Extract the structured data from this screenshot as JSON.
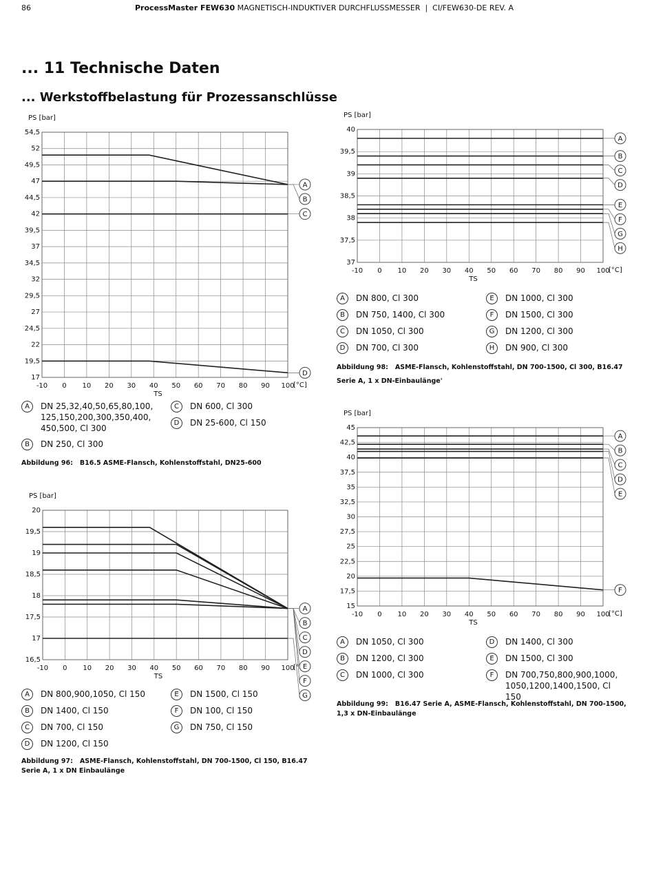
{
  "header": {
    "page": "86",
    "product": "ProcessMaster FEW630",
    "title": "MAGNETISCH-INDUKTIVER DURCHFLUSSMESSER  |  CI/FEW630-DE REV. A"
  },
  "headings": [
    "... 11 Technische Daten",
    "... Werkstoffbelastung für Prozessanschlüsse"
  ],
  "chart_data": [
    {
      "type": "line",
      "y_label": "PS [bar]",
      "x_label": "TS",
      "x_unit": "[°C]",
      "grid": true,
      "color": "#222",
      "xlim": [
        -10,
        100
      ],
      "xticks": [
        -10,
        0,
        10,
        20,
        30,
        40,
        50,
        60,
        70,
        80,
        90,
        100
      ],
      "ylim": [
        17,
        54.5
      ],
      "yticks": [
        17,
        {
          "value": 19.5,
          "label": "19,5"
        },
        22,
        {
          "value": 24.5,
          "label": "24,5"
        },
        27,
        {
          "value": 29.5,
          "label": "29,5"
        },
        32,
        {
          "value": 34.5,
          "label": "34,5"
        },
        37,
        {
          "value": 39.5,
          "label": "39,5"
        },
        42,
        {
          "value": 44.5,
          "label": "44,5"
        },
        47,
        {
          "value": 49.5,
          "label": "49,5"
        },
        52,
        {
          "value": 54.5,
          "label": "54,5"
        }
      ],
      "series": [
        {
          "name": "A",
          "label": "DN 25,32,40,50,65,80,100, 125,150,200,300,350,400, 450,500, Cl 300",
          "x": [
            -10,
            38,
            100
          ],
          "values": [
            51,
            51,
            46.5
          ]
        },
        {
          "name": "B",
          "label": "DN 250, Cl 300",
          "x": [
            -10,
            50,
            100
          ],
          "values": [
            47,
            47,
            46.5
          ]
        },
        {
          "name": "C",
          "label": "DN 600, Cl 300",
          "x": [
            -10,
            100
          ],
          "values": [
            42,
            42
          ]
        },
        {
          "name": "D",
          "label": "DN 25-600, Cl 150",
          "x": [
            -10,
            38,
            100
          ],
          "values": [
            19.5,
            19.5,
            17.7
          ]
        }
      ],
      "caption_number": "Abbildung 96:",
      "caption": "B16.5 ASME-Flansch, Kohlenstoffstahl, DN25-600"
    },
    {
      "type": "line",
      "y_label": "PS [bar]",
      "x_label": "TS",
      "x_unit": "[°C]",
      "grid": true,
      "color": "#222",
      "xlim": [
        -10,
        100
      ],
      "xticks": [
        -10,
        0,
        10,
        20,
        30,
        40,
        50,
        60,
        70,
        80,
        90,
        100
      ],
      "ylim": [
        37,
        40
      ],
      "yticks": [
        37,
        {
          "value": 37.5,
          "label": "37,5"
        },
        38,
        {
          "value": 38.5,
          "label": "38,5"
        },
        39,
        {
          "value": 39.5,
          "label": "39,5"
        },
        40
      ],
      "series": [
        {
          "name": "A",
          "label": "DN 800, Cl 300",
          "x": [
            -10,
            100
          ],
          "values": [
            39.8,
            39.8
          ]
        },
        {
          "name": "B",
          "label": "DN 750, 1400, Cl 300",
          "x": [
            -10,
            100
          ],
          "values": [
            39.4,
            39.4
          ]
        },
        {
          "name": "C",
          "label": "DN 1050, Cl 300",
          "x": [
            -10,
            100
          ],
          "values": [
            39.2,
            39.2
          ]
        },
        {
          "name": "D",
          "label": "DN 700, Cl 300",
          "x": [
            -10,
            100
          ],
          "values": [
            38.9,
            38.9
          ]
        },
        {
          "name": "E",
          "label": "DN 1000, Cl 300",
          "x": [
            -10,
            100
          ],
          "values": [
            38.3,
            38.3
          ]
        },
        {
          "name": "F",
          "label": "DN 1500, Cl 300",
          "x": [
            -10,
            100
          ],
          "values": [
            38.2,
            38.2
          ]
        },
        {
          "name": "G",
          "label": "DN 1200, Cl 300",
          "x": [
            -10,
            100
          ],
          "values": [
            38.1,
            38.1
          ]
        },
        {
          "name": "H",
          "label": "DN 900, Cl 300",
          "x": [
            -10,
            100
          ],
          "values": [
            37.9,
            37.9
          ]
        }
      ],
      "caption_number": "Abbildung 98:",
      "caption": "ASME-Flansch, Kohlenstoffstahl, DN 700-1500, Cl 300, B16.47 Serie A, 1 x DN-Einbaulänge'"
    },
    {
      "type": "line",
      "y_label": "PS [bar]",
      "x_label": "TS",
      "x_unit": "[°C]",
      "grid": true,
      "color": "#222",
      "xlim": [
        -10,
        100
      ],
      "xticks": [
        -10,
        0,
        10,
        20,
        30,
        40,
        50,
        60,
        70,
        80,
        90,
        100
      ],
      "ylim": [
        16.5,
        20
      ],
      "yticks": [
        {
          "value": 16.5,
          "label": "16,5"
        },
        17,
        {
          "value": 17.5,
          "label": "17,5"
        },
        18,
        {
          "value": 18.5,
          "label": "18,5"
        },
        19,
        {
          "value": 19.5,
          "label": "19,5"
        },
        20
      ],
      "series": [
        {
          "name": "A",
          "label": "DN 800,900,1050, Cl 150",
          "x": [
            -10,
            38,
            100
          ],
          "values": [
            19.6,
            19.6,
            17.7
          ]
        },
        {
          "name": "B",
          "label": "DN 1400, Cl 150",
          "x": [
            -10,
            50,
            100
          ],
          "values": [
            19.2,
            19.2,
            17.7
          ]
        },
        {
          "name": "C",
          "label": "DN 700, Cl 150",
          "x": [
            -10,
            50,
            100
          ],
          "values": [
            19,
            19,
            17.7
          ]
        },
        {
          "name": "D",
          "label": "DN 1200, Cl 150",
          "x": [
            -10,
            50,
            100
          ],
          "values": [
            18.6,
            18.6,
            17.7
          ]
        },
        {
          "name": "E",
          "label": "DN 1500, Cl 150",
          "x": [
            -10,
            50,
            100
          ],
          "values": [
            17.9,
            17.9,
            17.7
          ]
        },
        {
          "name": "F",
          "label": "DN 100, Cl 150",
          "x": [
            -10,
            50,
            100
          ],
          "values": [
            17.8,
            17.8,
            17.7
          ]
        },
        {
          "name": "G",
          "label": "DN 750, Cl 150",
          "x": [
            -10,
            100
          ],
          "values": [
            17,
            17
          ]
        }
      ],
      "caption_number": "Abbildung 97:",
      "caption": "ASME-Flansch, Kohlenstoffstahl, DN 700-1500, Cl 150, B16.47 Serie A, 1 x DN Einbaulänge"
    },
    {
      "type": "line",
      "y_label": "PS [bar]",
      "x_label": "TS",
      "x_unit": "[°C]",
      "grid": true,
      "color": "#222",
      "xlim": [
        -10,
        100
      ],
      "xticks": [
        -10,
        0,
        10,
        20,
        30,
        40,
        50,
        60,
        70,
        80,
        90,
        100
      ],
      "ylim": [
        15,
        45
      ],
      "yticks": [
        15,
        {
          "value": 17.5,
          "label": "17,5"
        },
        20,
        {
          "value": 22.5,
          "label": "22,5"
        },
        25,
        {
          "value": 27.5,
          "label": "27,5"
        },
        30,
        {
          "value": 32.5,
          "label": "32,5"
        },
        35,
        {
          "value": 37.5,
          "label": "37,5"
        },
        40,
        {
          "value": 42.5,
          "label": "42,5"
        },
        45
      ],
      "series": [
        {
          "name": "A",
          "label": "DN 1050, Cl 300",
          "x": [
            -10,
            100
          ],
          "values": [
            43.6,
            43.6
          ]
        },
        {
          "name": "B",
          "label": "DN 1200, Cl 300",
          "x": [
            -10,
            100
          ],
          "values": [
            42.2,
            42.2
          ]
        },
        {
          "name": "C",
          "label": "DN 1000, Cl 300",
          "x": [
            -10,
            100
          ],
          "values": [
            41.4,
            41.4
          ]
        },
        {
          "name": "D",
          "label": "DN 1400, Cl 300",
          "x": [
            -10,
            100
          ],
          "values": [
            41,
            41
          ]
        },
        {
          "name": "E",
          "label": "DN 1500, Cl 300",
          "x": [
            -10,
            100
          ],
          "values": [
            39.9,
            39.9
          ]
        },
        {
          "name": "F",
          "label": "DN 700,750,800,900,1000, 1050,1200,1400,1500, Cl 150",
          "x": [
            -10,
            40,
            100
          ],
          "values": [
            19.7,
            19.7,
            17.7
          ]
        }
      ],
      "caption_number": "Abbildung 99:",
      "caption": "B16.47 Serie A, ASME-Flansch, Kohlenstoffstahl, DN 700-1500, 1,3 x DN-Einbaulänge"
    }
  ]
}
